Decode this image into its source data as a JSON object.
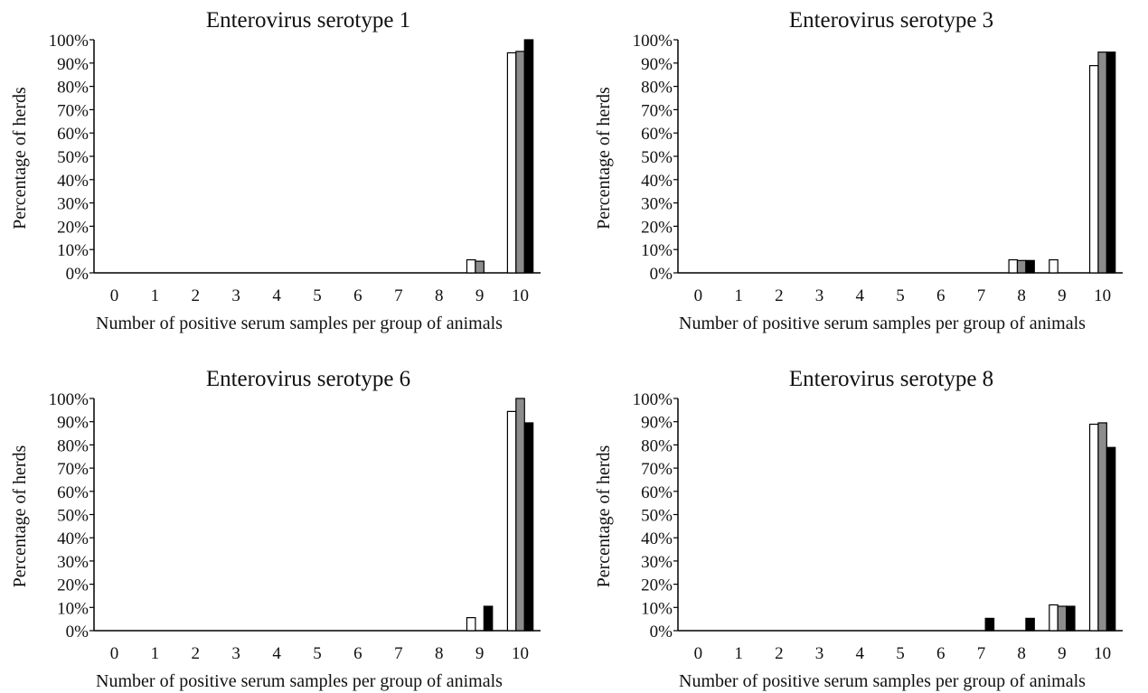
{
  "chart_data": [
    {
      "type": "bar",
      "title": "Enterovirus serotype 1",
      "xlabel": "Number of positive serum samples per group of animals",
      "ylabel": "Percentage of herds",
      "categories": [
        "0",
        "1",
        "2",
        "3",
        "4",
        "5",
        "6",
        "7",
        "8",
        "9",
        "10"
      ],
      "yticks": [
        "0%",
        "10%",
        "20%",
        "30%",
        "40%",
        "50%",
        "60%",
        "70%",
        "80%",
        "90%",
        "100%"
      ],
      "ylim": [
        0,
        100
      ],
      "grid": false,
      "series": [
        {
          "color": "#ffffff",
          "values": [
            0,
            0,
            0,
            0,
            0,
            0,
            0,
            0,
            0,
            5.6,
            94.4
          ]
        },
        {
          "color": "#8c8c8c",
          "values": [
            0,
            0,
            0,
            0,
            0,
            0,
            0,
            0,
            0,
            5.0,
            95.0
          ]
        },
        {
          "color": "#000000",
          "values": [
            0,
            0,
            0,
            0,
            0,
            0,
            0,
            0,
            0,
            0,
            100
          ]
        }
      ]
    },
    {
      "type": "bar",
      "title": "Enterovirus serotype 3",
      "xlabel": "Number of positive serum samples per group of animals",
      "ylabel": "Percentage of herds",
      "categories": [
        "0",
        "1",
        "2",
        "3",
        "4",
        "5",
        "6",
        "7",
        "8",
        "9",
        "10"
      ],
      "yticks": [
        "0%",
        "10%",
        "20%",
        "30%",
        "40%",
        "50%",
        "60%",
        "70%",
        "80%",
        "90%",
        "100%"
      ],
      "ylim": [
        0,
        100
      ],
      "grid": false,
      "series": [
        {
          "color": "#ffffff",
          "values": [
            0,
            0,
            0,
            0,
            0,
            0,
            0,
            0,
            5.6,
            5.6,
            88.9
          ]
        },
        {
          "color": "#8c8c8c",
          "values": [
            0,
            0,
            0,
            0,
            0,
            0,
            0,
            0,
            5.3,
            0,
            94.7
          ]
        },
        {
          "color": "#000000",
          "values": [
            0,
            0,
            0,
            0,
            0,
            0,
            0,
            0,
            5.3,
            0,
            94.7
          ]
        }
      ]
    },
    {
      "type": "bar",
      "title": "Enterovirus serotype 6",
      "xlabel": "Number of positive serum samples per group of animals",
      "ylabel": "Percentage of herds",
      "categories": [
        "0",
        "1",
        "2",
        "3",
        "4",
        "5",
        "6",
        "7",
        "8",
        "9",
        "10"
      ],
      "yticks": [
        "0%",
        "10%",
        "20%",
        "30%",
        "40%",
        "50%",
        "60%",
        "70%",
        "80%",
        "90%",
        "100%"
      ],
      "ylim": [
        0,
        100
      ],
      "grid": false,
      "series": [
        {
          "color": "#ffffff",
          "values": [
            0,
            0,
            0,
            0,
            0,
            0,
            0,
            0,
            0,
            5.6,
            94.4
          ]
        },
        {
          "color": "#8c8c8c",
          "values": [
            0,
            0,
            0,
            0,
            0,
            0,
            0,
            0,
            0,
            0,
            100
          ]
        },
        {
          "color": "#000000",
          "values": [
            0,
            0,
            0,
            0,
            0,
            0,
            0,
            0,
            0,
            10.5,
            89.5
          ]
        }
      ]
    },
    {
      "type": "bar",
      "title": "Enterovirus serotype 8",
      "xlabel": "Number of positive serum samples per group of animals",
      "ylabel": "Percentage of herds",
      "categories": [
        "0",
        "1",
        "2",
        "3",
        "4",
        "5",
        "6",
        "7",
        "8",
        "9",
        "10"
      ],
      "yticks": [
        "0%",
        "10%",
        "20%",
        "30%",
        "40%",
        "50%",
        "60%",
        "70%",
        "80%",
        "90%",
        "100%"
      ],
      "ylim": [
        0,
        100
      ],
      "grid": false,
      "series": [
        {
          "color": "#ffffff",
          "values": [
            0,
            0,
            0,
            0,
            0,
            0,
            0,
            0,
            0,
            11.1,
            88.9
          ]
        },
        {
          "color": "#8c8c8c",
          "values": [
            0,
            0,
            0,
            0,
            0,
            0,
            0,
            0,
            0,
            10.5,
            89.5
          ]
        },
        {
          "color": "#000000",
          "values": [
            0,
            0,
            0,
            0,
            0,
            0,
            0,
            5.3,
            5.3,
            10.5,
            78.9
          ]
        }
      ]
    }
  ]
}
